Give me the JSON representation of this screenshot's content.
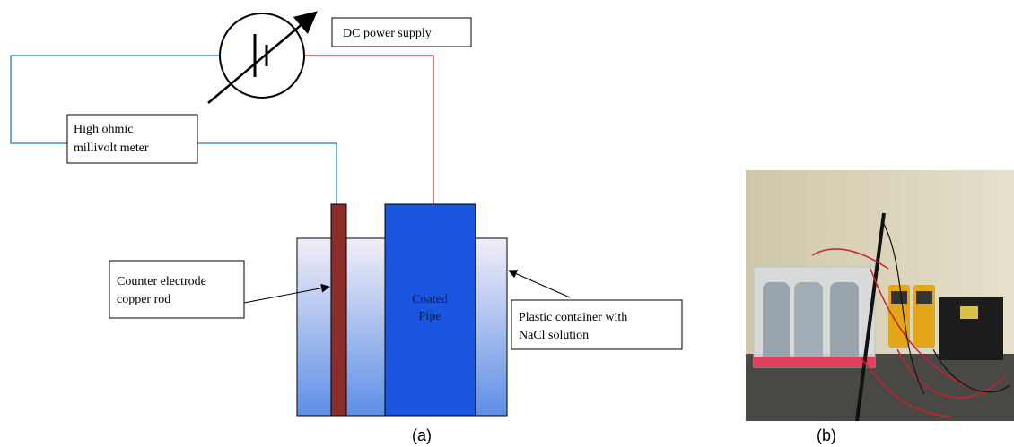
{
  "labels": {
    "dc_power_supply": "DC power supply",
    "millivolt_meter": [
      "High ohmic",
      "millivolt meter"
    ],
    "counter_electrode": [
      "Counter electrode",
      "copper rod"
    ],
    "coated_pipe": [
      "Coated",
      "Pipe"
    ],
    "plastic_container": [
      "Plastic container with",
      "NaCl solution"
    ]
  },
  "captions": [
    "(a)",
    "(b)"
  ]
}
